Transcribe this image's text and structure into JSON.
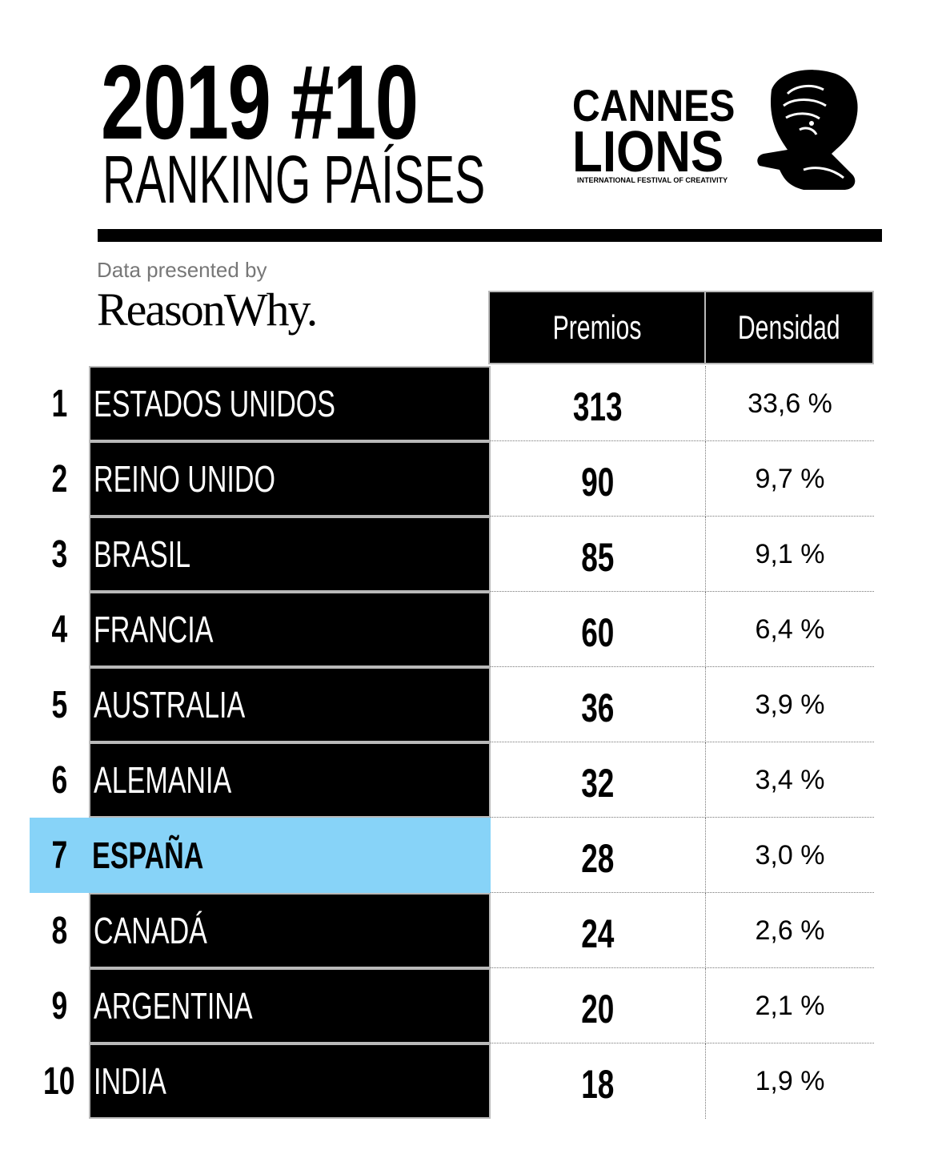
{
  "title": "2019 #10",
  "subtitle": "RANKING PAÍSES",
  "logo": {
    "line1": "CANNES",
    "line2": "LIONS",
    "tagline": "INTERNATIONAL FESTIVAL OF CREATIVITY"
  },
  "presented_by": "Data presented by",
  "sponsor": "ReasonWhy.",
  "columns": {
    "premios": "Premios",
    "densidad": "Densidad"
  },
  "highlight_color": "#87d3f8",
  "chart_data": {
    "type": "table",
    "columns": [
      "",
      "",
      "Premios",
      "Densidad"
    ],
    "rows": [
      {
        "rank": "1",
        "country": "ESTADOS UNIDOS",
        "premios": "313",
        "densidad": "33,6 %"
      },
      {
        "rank": "2",
        "country": "REINO UNIDO",
        "premios": "90",
        "densidad": "9,7 %"
      },
      {
        "rank": "3",
        "country": "BRASIL",
        "premios": "85",
        "densidad": "9,1 %"
      },
      {
        "rank": "4",
        "country": "FRANCIA",
        "premios": "60",
        "densidad": "6,4 %"
      },
      {
        "rank": "5",
        "country": "AUSTRALIA",
        "premios": "36",
        "densidad": "3,9 %"
      },
      {
        "rank": "6",
        "country": "ALEMANIA",
        "premios": "32",
        "densidad": "3,4 %"
      },
      {
        "rank": "7",
        "country": "ESPAÑA",
        "premios": "28",
        "densidad": "3,0 %",
        "highlighted": true
      },
      {
        "rank": "8",
        "country": "CANADÁ",
        "premios": "24",
        "densidad": "2,6 %"
      },
      {
        "rank": "9",
        "country": "ARGENTINA",
        "premios": "20",
        "densidad": "2,1 %"
      },
      {
        "rank": "10",
        "country": "INDIA",
        "premios": "18",
        "densidad": "1,9 %"
      }
    ]
  }
}
